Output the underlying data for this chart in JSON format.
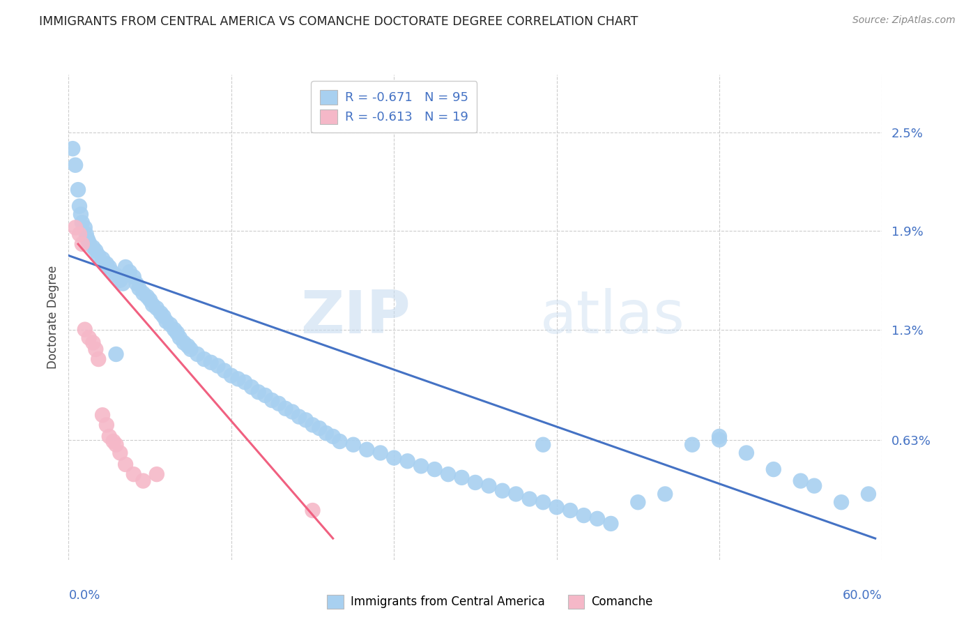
{
  "title": "IMMIGRANTS FROM CENTRAL AMERICA VS COMANCHE DOCTORATE DEGREE CORRELATION CHART",
  "source": "Source: ZipAtlas.com",
  "ylabel": "Doctorate Degree",
  "ytick_labels": [
    "0.63%",
    "1.3%",
    "1.9%",
    "2.5%"
  ],
  "ytick_values": [
    0.0063,
    0.013,
    0.019,
    0.025
  ],
  "xlim": [
    0.0,
    0.6
  ],
  "ylim": [
    -0.001,
    0.0285
  ],
  "blue_R": "-0.671",
  "blue_N": "95",
  "pink_R": "-0.613",
  "pink_N": "19",
  "legend_blue": "Immigrants from Central America",
  "legend_pink": "Comanche",
  "blue_color": "#A8D0F0",
  "pink_color": "#F5B8C8",
  "blue_line_color": "#4472C4",
  "pink_line_color": "#F06080",
  "watermark_zip": "ZIP",
  "watermark_atlas": "atlas",
  "blue_scatter_x": [
    0.003,
    0.005,
    0.007,
    0.008,
    0.009,
    0.01,
    0.012,
    0.013,
    0.014,
    0.015,
    0.018,
    0.02,
    0.022,
    0.025,
    0.028,
    0.03,
    0.032,
    0.035,
    0.038,
    0.04,
    0.042,
    0.045,
    0.048,
    0.05,
    0.052,
    0.055,
    0.058,
    0.06,
    0.062,
    0.065,
    0.068,
    0.07,
    0.072,
    0.075,
    0.078,
    0.08,
    0.082,
    0.085,
    0.088,
    0.09,
    0.095,
    0.1,
    0.105,
    0.11,
    0.115,
    0.12,
    0.125,
    0.13,
    0.135,
    0.14,
    0.145,
    0.15,
    0.155,
    0.16,
    0.165,
    0.17,
    0.175,
    0.18,
    0.185,
    0.19,
    0.195,
    0.2,
    0.21,
    0.22,
    0.23,
    0.24,
    0.25,
    0.26,
    0.27,
    0.28,
    0.29,
    0.3,
    0.31,
    0.32,
    0.33,
    0.34,
    0.35,
    0.36,
    0.37,
    0.38,
    0.39,
    0.4,
    0.35,
    0.48,
    0.5,
    0.52,
    0.54,
    0.46,
    0.42,
    0.44,
    0.55,
    0.48,
    0.035,
    0.59,
    0.57
  ],
  "blue_scatter_y": [
    0.024,
    0.023,
    0.0215,
    0.0205,
    0.02,
    0.0195,
    0.0192,
    0.0188,
    0.0185,
    0.0183,
    0.018,
    0.0178,
    0.0175,
    0.0173,
    0.017,
    0.0168,
    0.0165,
    0.0163,
    0.016,
    0.0158,
    0.0168,
    0.0165,
    0.0162,
    0.0158,
    0.0155,
    0.0152,
    0.015,
    0.0148,
    0.0145,
    0.0143,
    0.014,
    0.0138,
    0.0135,
    0.0133,
    0.013,
    0.0128,
    0.0125,
    0.0122,
    0.012,
    0.0118,
    0.0115,
    0.0112,
    0.011,
    0.0108,
    0.0105,
    0.0102,
    0.01,
    0.0098,
    0.0095,
    0.0092,
    0.009,
    0.0087,
    0.0085,
    0.0082,
    0.008,
    0.0077,
    0.0075,
    0.0072,
    0.007,
    0.0067,
    0.0065,
    0.0062,
    0.006,
    0.0057,
    0.0055,
    0.0052,
    0.005,
    0.0047,
    0.0045,
    0.0042,
    0.004,
    0.0037,
    0.0035,
    0.0032,
    0.003,
    0.0027,
    0.0025,
    0.0022,
    0.002,
    0.0017,
    0.0015,
    0.0012,
    0.006,
    0.0063,
    0.0055,
    0.0045,
    0.0038,
    0.006,
    0.0025,
    0.003,
    0.0035,
    0.0065,
    0.0115,
    0.003,
    0.0025
  ],
  "pink_scatter_x": [
    0.005,
    0.008,
    0.01,
    0.012,
    0.015,
    0.018,
    0.02,
    0.022,
    0.025,
    0.028,
    0.03,
    0.033,
    0.035,
    0.038,
    0.042,
    0.048,
    0.055,
    0.065,
    0.18
  ],
  "pink_scatter_y": [
    0.0192,
    0.0188,
    0.0182,
    0.013,
    0.0125,
    0.0122,
    0.0118,
    0.0112,
    0.0078,
    0.0072,
    0.0065,
    0.0062,
    0.006,
    0.0055,
    0.0048,
    0.0042,
    0.0038,
    0.0042,
    0.002
  ],
  "blue_line_x": [
    0.0,
    0.595
  ],
  "blue_line_y": [
    0.0175,
    0.0003
  ],
  "pink_line_x": [
    0.007,
    0.195
  ],
  "pink_line_y": [
    0.0182,
    0.0003
  ]
}
